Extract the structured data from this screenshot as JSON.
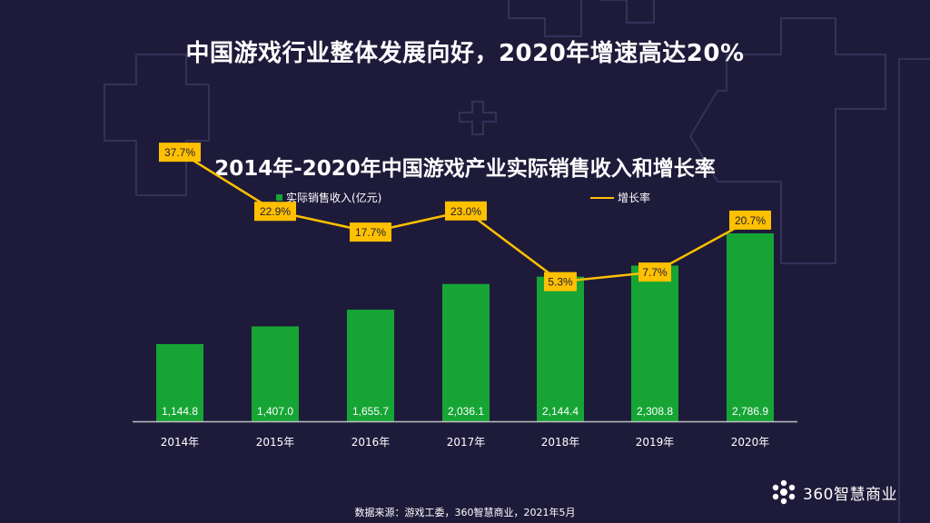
{
  "page": {
    "title": "中国游戏行业整体发展向好，2020年增速高达20%",
    "source": "数据来源：游戏工委，360智慧商业，2021年5月",
    "logo_text": "360智慧商业"
  },
  "chart_data": {
    "type": "bar",
    "title": "2014年-2020年中国游戏产业实际销售收入和增长率",
    "categories": [
      "2014年",
      "2015年",
      "2016年",
      "2017年",
      "2018年",
      "2019年",
      "2020年"
    ],
    "series": [
      {
        "name": "实际销售收入(亿元)",
        "type": "bar",
        "color": "#16a534",
        "values": [
          1144.8,
          1407.0,
          1655.7,
          2036.1,
          2144.4,
          2308.8,
          2786.9
        ],
        "labels": [
          "1,144.8",
          "1,407.0",
          "1,655.7",
          "2,036.1",
          "2,144.4",
          "2,308.8",
          "2,786.9"
        ]
      },
      {
        "name": "增长率",
        "type": "line",
        "color": "#ffc000",
        "values": [
          37.7,
          22.9,
          17.7,
          23.0,
          5.3,
          7.7,
          20.7
        ],
        "labels": [
          "37.7%",
          "22.9%",
          "17.7%",
          "23.0%",
          "5.3%",
          "7.7%",
          "20.7%"
        ]
      }
    ],
    "legend_position": "top",
    "grid": false
  }
}
